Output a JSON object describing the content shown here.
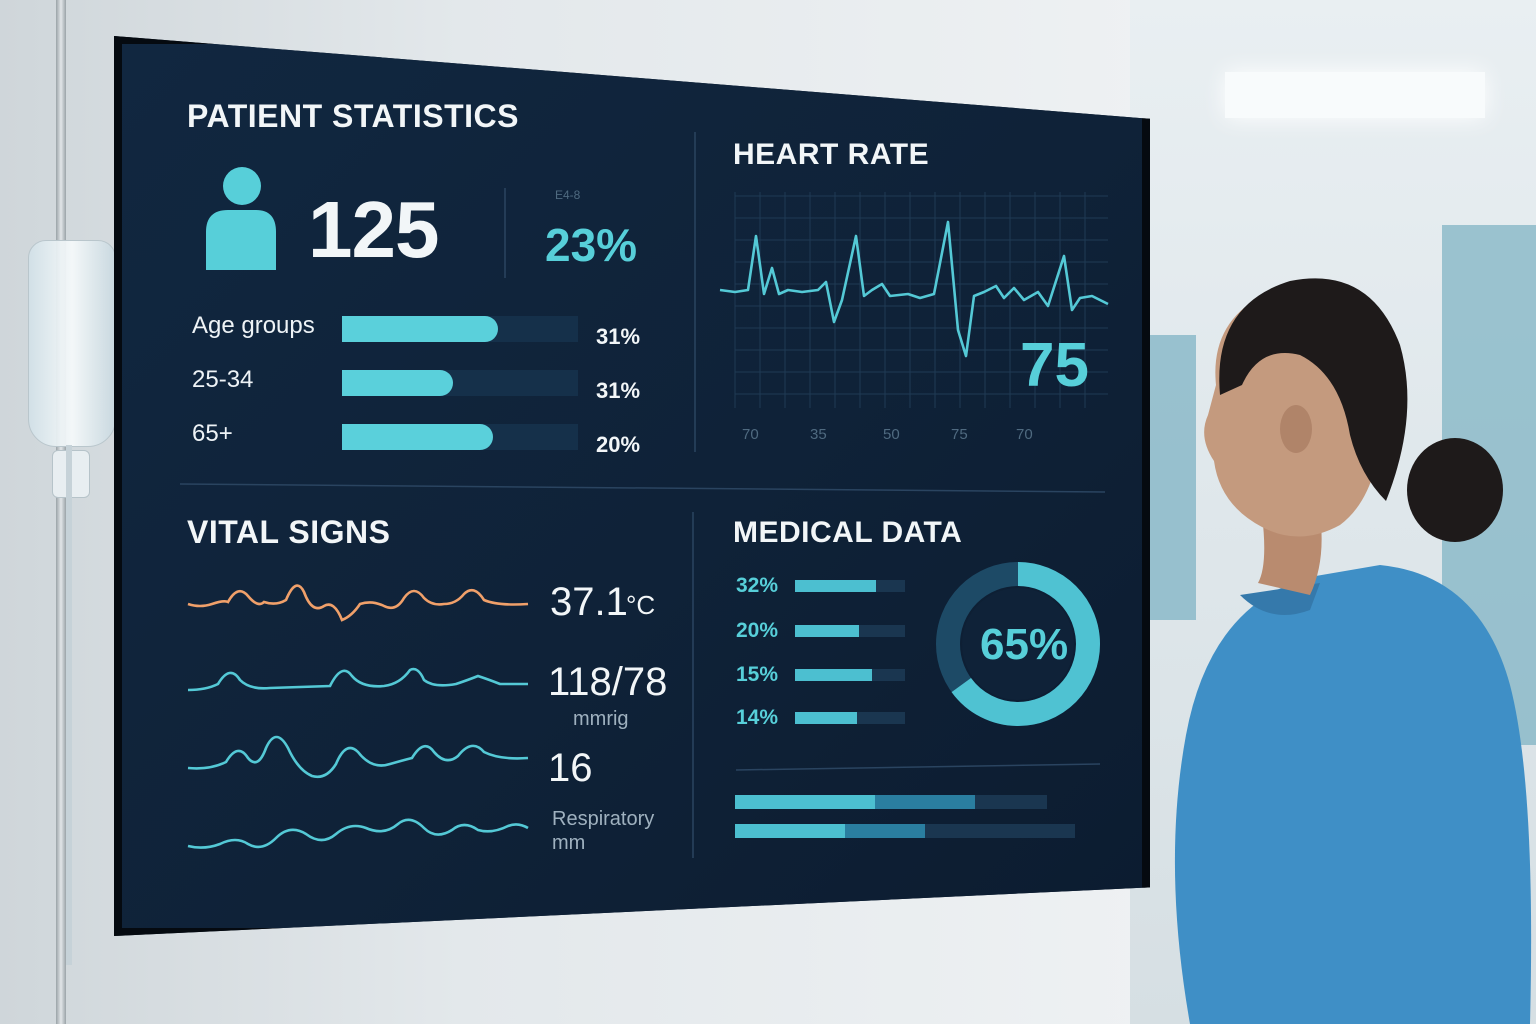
{
  "dashboard": {
    "patient_statistics": {
      "title": "PATIENT STATISTICS",
      "patient_count": "125",
      "small_label": "E4-8",
      "percentage": "23%",
      "age_groups": [
        {
          "label": "Age groups",
          "value": "31%",
          "fill": 0.66
        },
        {
          "label": "25-34",
          "value": "31%",
          "fill": 0.47
        },
        {
          "label": "65+",
          "value": "20%",
          "fill": 0.64
        }
      ]
    },
    "heart_rate": {
      "title": "HEART RATE",
      "value": "75",
      "ticks": [
        "70",
        "35",
        "50",
        "75",
        "70"
      ]
    },
    "vital_signs": {
      "title": "VITAL SIGNS",
      "temperature": "37.1",
      "temperature_unit": "°C",
      "blood_pressure": "118/78",
      "blood_pressure_unit": "mmrig",
      "respiratory_value": "16",
      "respiratory_label": "Respiratory",
      "respiratory_unit": "mm"
    },
    "medical_data": {
      "title": "MEDICAL DATA",
      "rows": [
        {
          "value": "32%",
          "fill": 0.74
        },
        {
          "value": "20%",
          "fill": 0.58
        },
        {
          "value": "15%",
          "fill": 0.7
        },
        {
          "value": "14%",
          "fill": 0.56
        }
      ],
      "donut_value": "65%",
      "donut_fraction": 0.65
    }
  },
  "colors": {
    "accent": "#57cfd9",
    "temperature_wave": "#f0a06a",
    "screen_bg": "#0e1f33",
    "scrubs": "#3f8fc6"
  },
  "icons": [
    "person-icon",
    "iv-bag-icon"
  ]
}
